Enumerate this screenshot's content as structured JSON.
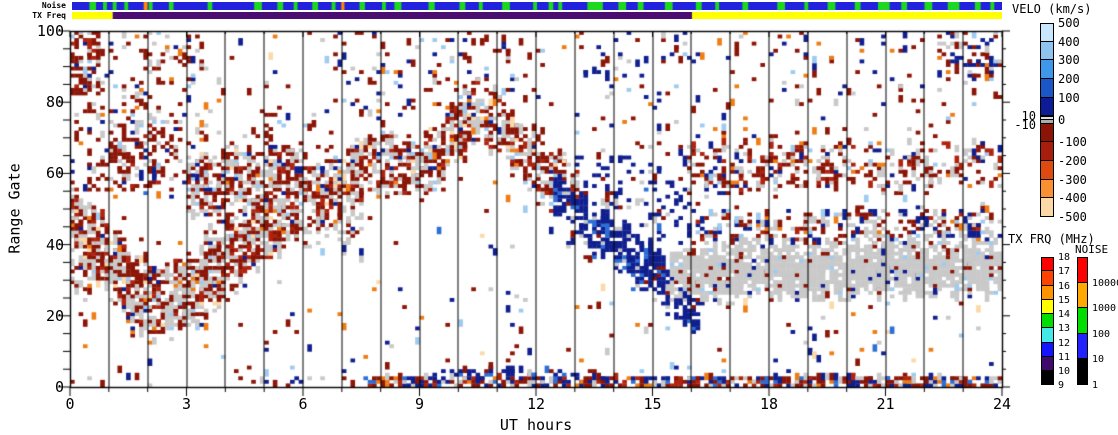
{
  "strips": {
    "noise_label": "Noise",
    "txfreq_label": "TX Freq",
    "noise_base_color": "#2222DE",
    "green_color": "#1ED81E",
    "orange_color": "#FF8A00",
    "green_marks": [
      [
        0.45,
        0.62
      ],
      [
        0.8,
        0.9
      ],
      [
        1.05,
        1.15
      ],
      [
        1.35,
        1.45
      ],
      [
        1.98,
        2.08
      ],
      [
        2.5,
        2.62
      ],
      [
        3.5,
        3.62
      ],
      [
        4.7,
        4.9
      ],
      [
        5.3,
        5.45
      ],
      [
        5.72,
        5.82
      ],
      [
        6.2,
        6.35
      ],
      [
        6.7,
        6.8
      ],
      [
        7.42,
        7.56
      ],
      [
        8.0,
        8.1
      ],
      [
        8.32,
        8.5
      ],
      [
        9.2,
        9.36
      ],
      [
        10.0,
        10.15
      ],
      [
        10.5,
        10.6
      ],
      [
        11.1,
        11.3
      ],
      [
        11.9,
        12.0
      ],
      [
        12.3,
        12.42
      ],
      [
        12.55,
        12.65
      ],
      [
        13.3,
        13.7
      ],
      [
        14.1,
        14.3
      ],
      [
        14.6,
        14.75
      ],
      [
        15.3,
        15.5
      ],
      [
        16.1,
        16.25
      ],
      [
        16.6,
        16.7
      ],
      [
        17.3,
        17.45
      ],
      [
        18.2,
        18.4
      ],
      [
        18.9,
        19.0
      ],
      [
        19.5,
        19.7
      ],
      [
        20.2,
        20.35
      ],
      [
        20.8,
        21.1
      ],
      [
        21.4,
        21.55
      ],
      [
        22.0,
        22.2
      ],
      [
        22.6,
        22.9
      ],
      [
        23.3,
        23.45
      ],
      [
        23.7,
        23.8
      ]
    ],
    "orange_marks": [
      [
        1.85,
        1.95
      ],
      [
        6.95,
        7.03
      ]
    ],
    "txfreq_segments": [
      {
        "from": 0,
        "to": 1.05,
        "color": "#FFFF00"
      },
      {
        "from": 1.05,
        "to": 16.0,
        "color": "#4A0E70"
      },
      {
        "from": 16.0,
        "to": 24,
        "color": "#FFFF00"
      }
    ]
  },
  "axes": {
    "xlabel": "UT hours",
    "ylabel": "Range Gate",
    "x_ticks": [
      0,
      3,
      6,
      9,
      12,
      15,
      18,
      21,
      24
    ],
    "y_ticks": [
      0,
      20,
      40,
      60,
      80,
      100
    ],
    "x_range": [
      0,
      24
    ],
    "y_range": [
      0,
      100
    ]
  },
  "colorbars": {
    "velo": {
      "title": "VELO (km/s)",
      "upper_labels": [
        "500",
        "400",
        "300",
        "200",
        "100"
      ],
      "zero_label": "0",
      "side_labels": [
        "10",
        "-10"
      ],
      "lower_labels": [
        "-100",
        "-200",
        "-300",
        "-400",
        "-500"
      ],
      "upper_colors": [
        "#C9E7FC",
        "#8FC4F1",
        "#3E97E8",
        "#1A56C8",
        "#0D1C96"
      ],
      "zero_colors": [
        "#DCDCDC",
        "#ACACAC"
      ],
      "lower_colors": [
        "#8C1407",
        "#A81E0D",
        "#DE4A10",
        "#F99033",
        "#FBD8A5"
      ]
    },
    "txfrq": {
      "title": "TX FRQ (MHz)",
      "labels": [
        "18",
        "17",
        "16",
        "15",
        "14",
        "13",
        "12",
        "11",
        "10",
        "9"
      ],
      "colors": [
        "#FF0000",
        "#FF4300",
        "#FF9400",
        "#FFFF00",
        "#00DE00",
        "#45E8E8",
        "#1414FF",
        "#3F0A69",
        "#000000"
      ]
    },
    "noise": {
      "title": "NOISE",
      "labels": [
        "10000",
        "1000",
        "100",
        "10",
        "1"
      ],
      "colors": [
        "#FF0000",
        "#FFA800",
        "#00DE00",
        "#2222FF",
        "#000000"
      ]
    }
  },
  "chart_data": {
    "type": "heatmap",
    "subtype": "radar-range-time-velocity",
    "xlabel": "UT hours",
    "ylabel": "Range Gate",
    "xlim": [
      0,
      24
    ],
    "ylim": [
      0,
      100
    ],
    "legend": "VELO (km/s)",
    "hour_gridlines": true,
    "velocity_scale_km_s": [
      -500,
      500
    ],
    "ground_scatter_band_km_s": [
      -10,
      10
    ],
    "palette": {
      "darkred": "#8B1507",
      "red": "#B0240F",
      "navy": "#101F8E",
      "blue": "#2C6FD6",
      "lightblue": "#9FCBEF",
      "paleblue": "#CFE4F7",
      "orange": "#EE7D15",
      "peach": "#FBD9A8",
      "gs": "#C9C9C9"
    },
    "time_cells": 216,
    "features": [
      {
        "name": "dawn-band",
        "type": "band",
        "path": [
          [
            0,
            45
          ],
          [
            0.8,
            40
          ],
          [
            1.6,
            27
          ],
          [
            2.4,
            23
          ],
          [
            3.2,
            27
          ],
          [
            4.2,
            36
          ],
          [
            5.2,
            48
          ],
          [
            5.9,
            55
          ]
        ],
        "hw": 11,
        "density": 0.8,
        "colors": {
          "darkred": 0.38,
          "red": 0.1,
          "gs": 0.4,
          "navy": 0.04,
          "orange": 0.02,
          "lightblue": 0.03,
          "peach": 0.03
        }
      },
      {
        "name": "upperleft-speckle",
        "type": "rect",
        "t": [
          0,
          3.6
        ],
        "g": [
          55,
          100
        ],
        "density": 0.17,
        "colors": {
          "darkred": 0.55,
          "gs": 0.22,
          "navy": 0.1,
          "lightblue": 0.06,
          "orange": 0.07
        }
      },
      {
        "name": "upperleft-blob",
        "type": "rect",
        "t": [
          0,
          0.8
        ],
        "g": [
          82,
          100
        ],
        "density": 0.5,
        "colors": {
          "darkred": 0.6,
          "red": 0.12,
          "gs": 0.16,
          "navy": 0.08,
          "lightblue": 0.04
        }
      },
      {
        "name": "gate60-75-blob",
        "type": "rect",
        "t": [
          1.0,
          2.4
        ],
        "g": [
          56,
          76
        ],
        "density": 0.42,
        "colors": {
          "darkred": 0.62,
          "red": 0.1,
          "gs": 0.18,
          "navy": 0.06,
          "lightblue": 0.04
        }
      },
      {
        "name": "rise-streak",
        "type": "band",
        "path": [
          [
            2.6,
            28
          ],
          [
            3.4,
            36
          ],
          [
            4.2,
            45
          ],
          [
            5.0,
            54
          ]
        ],
        "hw": 5,
        "density": 0.5,
        "colors": {
          "darkred": 0.6,
          "gs": 0.3,
          "navy": 0.05,
          "lightblue": 0.05
        }
      },
      {
        "name": "main-wave",
        "type": "band",
        "path": [
          [
            3.0,
            55
          ],
          [
            4.0,
            58
          ],
          [
            4.8,
            62
          ],
          [
            5.6,
            59
          ],
          [
            6.4,
            55
          ],
          [
            7.2,
            58
          ],
          [
            8.0,
            64
          ],
          [
            8.7,
            61
          ],
          [
            9.4,
            65
          ],
          [
            10.0,
            71
          ],
          [
            10.5,
            77
          ],
          [
            11.0,
            74
          ],
          [
            11.6,
            67
          ],
          [
            12.2,
            61
          ],
          [
            12.7,
            56
          ],
          [
            13.1,
            51
          ]
        ],
        "hw": 9,
        "density": 0.7,
        "colors": {
          "darkred": 0.4,
          "red": 0.1,
          "gs": 0.36,
          "navy": 0.06,
          "lightblue": 0.03,
          "orange": 0.02,
          "peach": 0.03
        }
      },
      {
        "name": "wave-lower-shelf",
        "type": "band",
        "path": [
          [
            3.4,
            48
          ],
          [
            4.5,
            46
          ],
          [
            5.5,
            47
          ],
          [
            6.5,
            44
          ],
          [
            7.5,
            46
          ]
        ],
        "hw": 6,
        "density": 0.3,
        "colors": {
          "gs": 0.6,
          "darkred": 0.3,
          "navy": 0.05,
          "orange": 0.05
        }
      },
      {
        "name": "heavy-red-morning",
        "type": "rect",
        "t": [
          4.4,
          6.6
        ],
        "g": [
          46,
          62
        ],
        "density": 0.3,
        "colors": {
          "darkred": 0.7,
          "gs": 0.2,
          "navy": 0.1
        }
      },
      {
        "name": "above-wave-sparse",
        "type": "rect",
        "t": [
          3.6,
          6.8
        ],
        "g": [
          62,
          80
        ],
        "density": 0.08,
        "colors": {
          "darkred": 0.6,
          "gs": 0.2,
          "navy": 0.1,
          "lightblue": 0.1
        }
      },
      {
        "name": "midtop-speckle",
        "type": "rect",
        "t": [
          6.8,
          12.2
        ],
        "g": [
          76,
          100
        ],
        "density": 0.12,
        "colors": {
          "darkred": 0.55,
          "navy": 0.18,
          "gs": 0.12,
          "lightblue": 0.08,
          "orange": 0.07
        }
      },
      {
        "name": "peak-blob",
        "type": "rect",
        "t": [
          10.1,
          11.4
        ],
        "g": [
          72,
          86
        ],
        "density": 0.32,
        "colors": {
          "darkred": 0.55,
          "gs": 0.3,
          "navy": 0.1,
          "lightblue": 0.05
        }
      },
      {
        "name": "blue-descent",
        "type": "band",
        "path": [
          [
            12.5,
            57
          ],
          [
            13.0,
            50
          ],
          [
            13.5,
            44
          ],
          [
            14.0,
            40
          ],
          [
            14.6,
            36
          ],
          [
            15.2,
            30
          ],
          [
            15.8,
            25
          ],
          [
            16.2,
            23
          ]
        ],
        "hw": 7,
        "density": 0.8,
        "colors": {
          "navy": 0.8,
          "blue": 0.08,
          "gs": 0.08,
          "darkred": 0.04
        }
      },
      {
        "name": "navy-cloud",
        "type": "rect",
        "t": [
          12.8,
          16.2
        ],
        "g": [
          40,
          66
        ],
        "density": 0.16,
        "colors": {
          "navy": 0.72,
          "blue": 0.08,
          "darkred": 0.12,
          "gs": 0.08
        }
      },
      {
        "name": "descent-end-blob",
        "type": "rect",
        "t": [
          15.5,
          16.3
        ],
        "g": [
          20,
          35
        ],
        "density": 0.5,
        "colors": {
          "navy": 0.85,
          "blue": 0.05,
          "gs": 0.1
        }
      },
      {
        "name": "gs-night-band",
        "type": "band",
        "path": [
          [
            15.5,
            30
          ],
          [
            16.5,
            32
          ],
          [
            18,
            33
          ],
          [
            20,
            33
          ],
          [
            22,
            34
          ],
          [
            24,
            33
          ]
        ],
        "hw": 8,
        "density": 0.92,
        "colors": {
          "gs": 0.88,
          "darkred": 0.05,
          "navy": 0.04,
          "lightblue": 0.03
        }
      },
      {
        "name": "night-mixed-band",
        "type": "band",
        "path": [
          [
            16,
            45
          ],
          [
            18,
            44
          ],
          [
            20,
            44
          ],
          [
            22,
            45
          ],
          [
            24,
            44
          ]
        ],
        "hw": 6,
        "density": 0.45,
        "colors": {
          "darkred": 0.28,
          "red": 0.08,
          "navy": 0.22,
          "gs": 0.3,
          "orange": 0.05,
          "lightblue": 0.07
        }
      },
      {
        "name": "night-upper-band",
        "type": "band",
        "path": [
          [
            15.9,
            62
          ],
          [
            17,
            61
          ],
          [
            18,
            62
          ],
          [
            19,
            61
          ],
          [
            20,
            62
          ],
          [
            21,
            61
          ],
          [
            22,
            63
          ],
          [
            23,
            62
          ],
          [
            24,
            63
          ]
        ],
        "hw": 7,
        "density": 0.4,
        "colors": {
          "darkred": 0.44,
          "red": 0.1,
          "gs": 0.26,
          "navy": 0.12,
          "orange": 0.04,
          "lightblue": 0.04
        }
      },
      {
        "name": "night-navy-streaks",
        "type": "rect",
        "t": [
          16.1,
          17.6
        ],
        "g": [
          53,
          68
        ],
        "density": 0.18,
        "colors": {
          "navy": 0.5,
          "darkred": 0.3,
          "gs": 0.2
        }
      },
      {
        "name": "bottom-rows-late",
        "type": "rect",
        "t": [
          7.6,
          24
        ],
        "g": [
          0,
          2.5
        ],
        "density": 0.7,
        "colors": {
          "darkred": 0.34,
          "red": 0.1,
          "navy": 0.28,
          "gs": 0.16,
          "blue": 0.06,
          "orange": 0.06
        }
      },
      {
        "name": "bottom-blue-mid",
        "type": "rect",
        "t": [
          9.3,
          13.6
        ],
        "g": [
          0,
          5
        ],
        "density": 0.35,
        "colors": {
          "navy": 0.7,
          "blue": 0.1,
          "darkred": 0.1,
          "gs": 0.1
        }
      },
      {
        "name": "bottom-rows-early",
        "type": "rect",
        "t": [
          0,
          7.6
        ],
        "g": [
          0,
          2.5
        ],
        "density": 0.1,
        "colors": {
          "darkred": 0.4,
          "navy": 0.3,
          "gs": 0.3
        }
      },
      {
        "name": "left-edge-gs",
        "type": "rect",
        "t": [
          0,
          0.5
        ],
        "g": [
          26,
          52
        ],
        "density": 0.55,
        "colors": {
          "gs": 0.55,
          "darkred": 0.35,
          "orange": 0.05,
          "navy": 0.05
        }
      },
      {
        "name": "h13-16-top-sparse",
        "type": "rect",
        "t": [
          13,
          16
        ],
        "g": [
          66,
          100
        ],
        "density": 0.06,
        "colors": {
          "navy": 0.4,
          "darkred": 0.3,
          "lightblue": 0.12,
          "gs": 0.1,
          "orange": 0.08
        }
      },
      {
        "name": "night-top-sparse",
        "type": "rect",
        "t": [
          16,
          24
        ],
        "g": [
          70,
          100
        ],
        "density": 0.055,
        "colors": {
          "darkred": 0.4,
          "navy": 0.25,
          "gs": 0.15,
          "orange": 0.1,
          "lightblue": 0.1
        }
      },
      {
        "name": "topright-corner",
        "type": "rect",
        "t": [
          22.3,
          24
        ],
        "g": [
          86,
          100
        ],
        "density": 0.3,
        "colors": {
          "darkred": 0.45,
          "navy": 0.3,
          "gs": 0.1,
          "orange": 0.07,
          "lightblue": 0.08
        }
      },
      {
        "name": "global-speckle",
        "type": "rect",
        "t": [
          0,
          24
        ],
        "g": [
          0,
          100
        ],
        "density": 0.022,
        "colors": {
          "darkred": 0.3,
          "navy": 0.22,
          "lightblue": 0.12,
          "blue": 0.06,
          "orange": 0.1,
          "peach": 0.08,
          "gs": 0.12
        }
      }
    ]
  }
}
